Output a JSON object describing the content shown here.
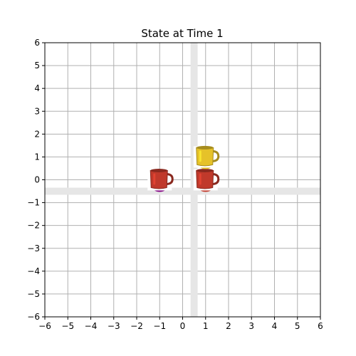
{
  "chart_data": {
    "type": "scatter",
    "title": "State at Time 1",
    "xlabel": "",
    "ylabel": "",
    "xlim": [
      -6,
      6
    ],
    "ylim": [
      -6,
      6
    ],
    "x_ticks": [
      -6,
      -5,
      -4,
      -3,
      -2,
      -1,
      0,
      1,
      2,
      3,
      4,
      5,
      6
    ],
    "y_ticks": [
      -6,
      -5,
      -4,
      -3,
      -2,
      -1,
      0,
      1,
      2,
      3,
      4,
      5,
      6
    ],
    "x_tick_labels": [
      "−6",
      "−5",
      "−4",
      "−3",
      "−2",
      "−1",
      "0",
      "1",
      "2",
      "3",
      "4",
      "5",
      "6"
    ],
    "y_tick_labels": [
      "−6",
      "−5",
      "−4",
      "−3",
      "−2",
      "−1",
      "0",
      "1",
      "2",
      "3",
      "4",
      "5",
      "6"
    ],
    "grid": true,
    "highlight_lines": {
      "vertical_x": 0.5,
      "horizontal_y": -0.5,
      "color": "#e6e6e6"
    },
    "points": [
      {
        "x": -1,
        "y": 0,
        "icon": "red-mug",
        "color": "#c0392b",
        "marker_color": "#800080"
      },
      {
        "x": 1,
        "y": 0,
        "icon": "red-mug",
        "color": "#c0392b",
        "marker_color": "#c0392b"
      },
      {
        "x": 1,
        "y": 1,
        "icon": "yellow-mug",
        "color": "#e6c229",
        "marker_color": "#e6c229"
      }
    ]
  }
}
